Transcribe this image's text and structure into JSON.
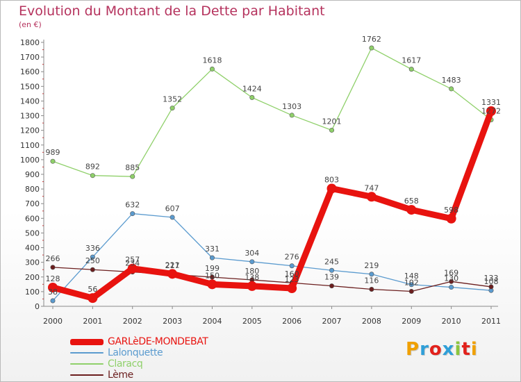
{
  "header": {
    "title": "Evolution du Montant de la Dette par Habitant",
    "subtitle": "(en €)"
  },
  "logo": {
    "text": "Proxiti",
    "colors": [
      "#f0a000",
      "#2f9fd8",
      "#e2211c",
      "#2f9fd8",
      "#8cc63f",
      "#e2211c",
      "#f0a000"
    ]
  },
  "chart_data": {
    "type": "line",
    "x": [
      "2000",
      "2001",
      "2002",
      "2003",
      "2004",
      "2005",
      "2006",
      "2007",
      "2008",
      "2009",
      "2010",
      "2011"
    ],
    "ylim": [
      0,
      1800
    ],
    "yticks": [
      0,
      100,
      200,
      300,
      400,
      500,
      600,
      700,
      800,
      900,
      1000,
      1100,
      1200,
      1300,
      1400,
      1500,
      1600,
      1700,
      1800
    ],
    "grid": false,
    "legend_position": "bottom-left",
    "series": [
      {
        "name": "GARLèDE-MONDEBAT",
        "color": "#e8130f",
        "values": [
          128,
          56,
          257,
          221,
          150,
          138,
          123,
          803,
          747,
          658,
          598,
          1331
        ],
        "labels": [
          "128",
          "56",
          "257",
          "221",
          "150",
          "138",
          "123",
          "803",
          "747",
          "658",
          "598",
          "1331"
        ]
      },
      {
        "name": "Lalonquette",
        "color": "#5b9bcf",
        "values": [
          38,
          336,
          632,
          607,
          331,
          304,
          276,
          245,
          219,
          148,
          130,
          108
        ],
        "labels": [
          "38",
          "336",
          "632",
          "607",
          "331",
          "304",
          "276",
          "245",
          "219",
          "148",
          "130",
          "108"
        ]
      },
      {
        "name": "Claracq",
        "color": "#8fd06a",
        "values": [
          989,
          892,
          885,
          1352,
          1618,
          1424,
          1303,
          1201,
          1762,
          1617,
          1483,
          1272
        ],
        "labels": [
          "989",
          "892",
          "885",
          "1352",
          "1618",
          "1424",
          "1303",
          "1201",
          "1762",
          "1617",
          "1483",
          "1272"
        ]
      },
      {
        "name": "Lème",
        "color": "#6b1e1e",
        "values": [
          266,
          250,
          234,
          217,
          199,
          180,
          160,
          139,
          116,
          102,
          169,
          133
        ],
        "labels": [
          "266",
          "250",
          "234",
          "217",
          "199",
          "180",
          "160",
          "139",
          "116",
          "102",
          "169",
          "133"
        ]
      }
    ]
  }
}
